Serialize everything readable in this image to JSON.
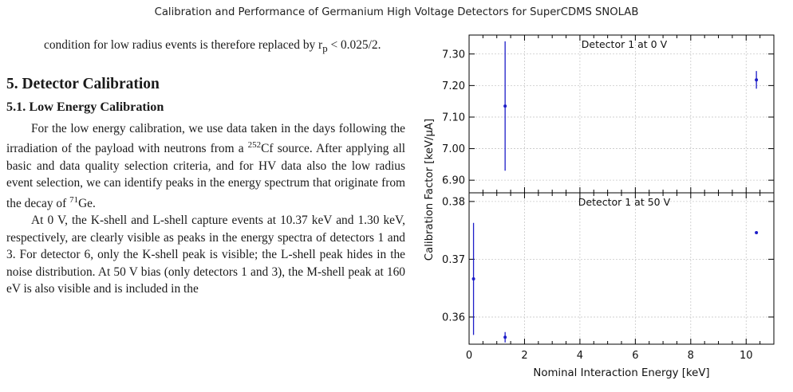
{
  "header": {
    "running_title": "Calibration and Performance of Germanium High Voltage Detectors for SuperCDMS SNOLAB"
  },
  "body": {
    "para_cont_line1": "condition for low radius events is therefore replaced",
    "para_cont_line2_pre": "by r",
    "para_cont_line2_sub": "p",
    "para_cont_line2_post": " < 0.025/2.",
    "section_heading": "5. Detector Calibration",
    "subsection_heading": "5.1. Low Energy Calibration",
    "p1_a": "For the low energy calibration, we use data taken in the days following the irradiation of the payload with neutrons from a ",
    "p1_sup1": "252",
    "p1_b": "Cf source. After applying all basic and data quality selection criteria, and for HV data also the low radius event selection, we can identify peaks in the energy spectrum that originate from the decay of ",
    "p1_sup2": "71",
    "p1_c": "Ge.",
    "p2": "At 0 V, the K-shell and L-shell capture events at 10.37 keV and 1.30 keV, respectively, are clearly visible as peaks in the energy spectra of detectors 1 and 3. For detector 6, only the K-shell peak is visible; the L-shell peak hides in the noise distribution. At 50 V bias (only detectors 1 and 3), the M-shell peak at 160 eV is also visible and is included in the"
  },
  "chart_data": [
    {
      "type": "scatter",
      "panel_label": "Detector 1 at 0 V",
      "xlabel": "Nominal Interaction Energy [keV]",
      "ylabel": "Calibration Factor [keV/μA]",
      "xlim": [
        0,
        11
      ],
      "ylim": [
        6.86,
        7.36
      ],
      "yticks": [
        6.9,
        7.0,
        7.1,
        7.2,
        7.3
      ],
      "ytick_labels": [
        "6.90",
        "7.00",
        "7.10",
        "7.20",
        "7.30"
      ],
      "grid": true,
      "points": [
        {
          "x": 1.3,
          "y": 7.135,
          "err": 0.205
        },
        {
          "x": 10.37,
          "y": 7.218,
          "err": 0.028
        }
      ]
    },
    {
      "type": "scatter",
      "panel_label": "Detector 1 at 50 V",
      "xlabel": "Nominal Interaction Energy [keV]",
      "ylabel": "Calibration Factor [keV/μA]",
      "xlim": [
        0,
        11
      ],
      "ylim": [
        0.3553,
        0.3815
      ],
      "yticks": [
        0.36,
        0.37,
        0.38
      ],
      "ytick_labels": [
        "0.36",
        "0.37",
        "0.38"
      ],
      "xticks": [
        0,
        2,
        4,
        6,
        8,
        10
      ],
      "xtick_labels": [
        "0",
        "2",
        "4",
        "6",
        "8",
        "10"
      ],
      "grid": true,
      "points": [
        {
          "x": 0.16,
          "y": 0.3666,
          "err": 0.0097
        },
        {
          "x": 1.3,
          "y": 0.3565,
          "err": 0.0009
        },
        {
          "x": 10.37,
          "y": 0.3746,
          "err": 0.0002
        }
      ]
    }
  ],
  "colors": {
    "data": "#1d1dc8",
    "grid": "#c8c8c8",
    "axis": "#000000"
  }
}
